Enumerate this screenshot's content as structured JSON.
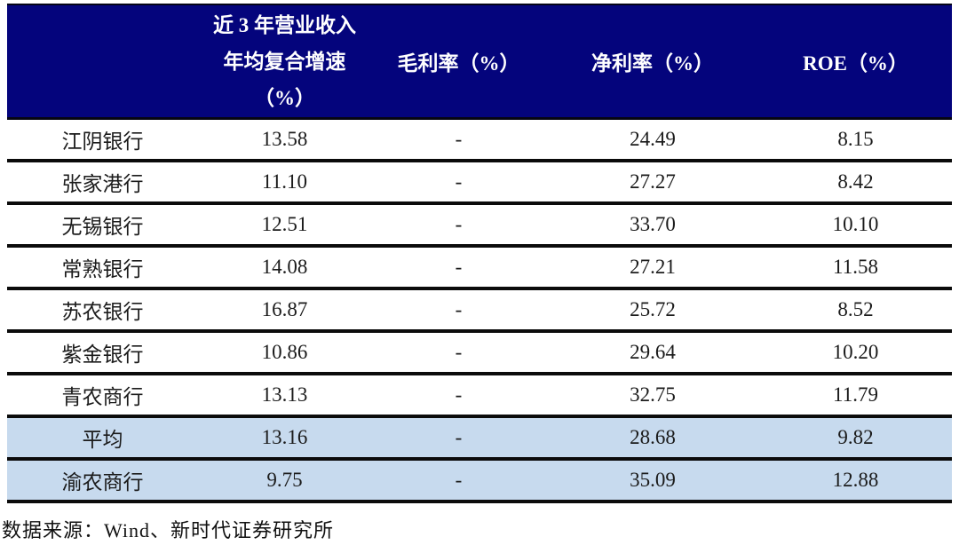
{
  "chart_data": {
    "type": "table",
    "title": "",
    "columns": [
      "",
      "近 3 年营业收入年均复合增速（%）",
      "毛利率（%）",
      "净利率（%）",
      "ROE（%）"
    ],
    "header_col2_lines": [
      "近 3 年营业收入",
      "年均复合增速",
      "（%）"
    ],
    "rows": [
      {
        "name": "江阴银行",
        "values": [
          "13.58",
          "-",
          "24.49",
          "8.15"
        ],
        "highlight": false
      },
      {
        "name": "张家港行",
        "values": [
          "11.10",
          "-",
          "27.27",
          "8.42"
        ],
        "highlight": false
      },
      {
        "name": "无锡银行",
        "values": [
          "12.51",
          "-",
          "33.70",
          "10.10"
        ],
        "highlight": false
      },
      {
        "name": "常熟银行",
        "values": [
          "14.08",
          "-",
          "27.21",
          "11.58"
        ],
        "highlight": false
      },
      {
        "name": "苏农银行",
        "values": [
          "16.87",
          "-",
          "25.72",
          "8.52"
        ],
        "highlight": false
      },
      {
        "name": "紫金银行",
        "values": [
          "10.86",
          "-",
          "29.64",
          "10.20"
        ],
        "highlight": false
      },
      {
        "name": "青农商行",
        "values": [
          "13.13",
          "-",
          "32.75",
          "11.79"
        ],
        "highlight": false
      },
      {
        "name": "平均",
        "values": [
          "13.16",
          "-",
          "28.68",
          "9.82"
        ],
        "highlight": true
      },
      {
        "name": "渝农商行",
        "values": [
          "9.75",
          "-",
          "35.09",
          "12.88"
        ],
        "highlight": true
      }
    ],
    "source": "数据来源：Wind、新时代证券研究所"
  },
  "colors": {
    "header_bg": "#04047C",
    "header_text": "#FFFFFF",
    "highlight_bg": "#C7DAEE",
    "row_border": "#0B0B0B",
    "body_text": "#1B1B1B"
  }
}
